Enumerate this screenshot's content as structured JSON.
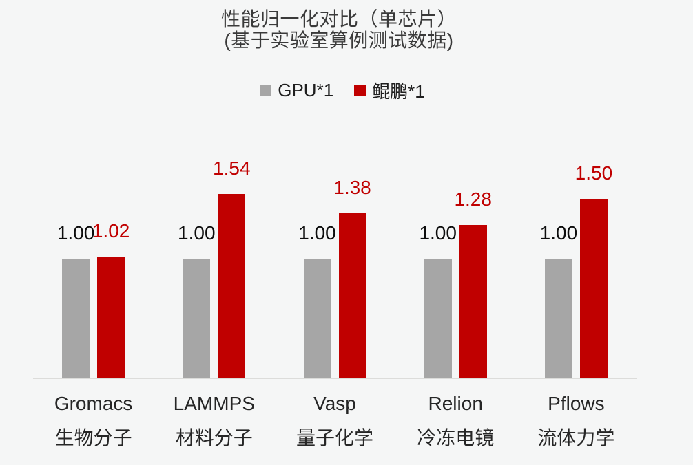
{
  "page": {
    "background": "#f5f6f6"
  },
  "chart_data": {
    "type": "bar",
    "title": "性能归一化对比（单芯片）",
    "subtitle": "(基于实验室算例测试数据)",
    "categories": [
      "Gromacs",
      "LAMMPS",
      "Vasp",
      "Relion",
      "Pflows"
    ],
    "category_sublabels": [
      "生物分子",
      "材料分子",
      "量子化学",
      "冷冻电镜",
      "流体力学"
    ],
    "series": [
      {
        "name": "GPU*1",
        "color": "#a6a6a6",
        "label_color": "#0d0d0d",
        "values": [
          1.0,
          1.0,
          1.0,
          1.0,
          1.0
        ]
      },
      {
        "name": "鲲鹏*1",
        "color": "#c00000",
        "label_color": "#c00000",
        "values": [
          1.02,
          1.54,
          1.38,
          1.28,
          1.5
        ]
      }
    ],
    "value_decimals": 2,
    "ylim": [
      0,
      1.7
    ],
    "grid": false,
    "legend_position": "top",
    "axis_line_color": "#dcdcda"
  }
}
